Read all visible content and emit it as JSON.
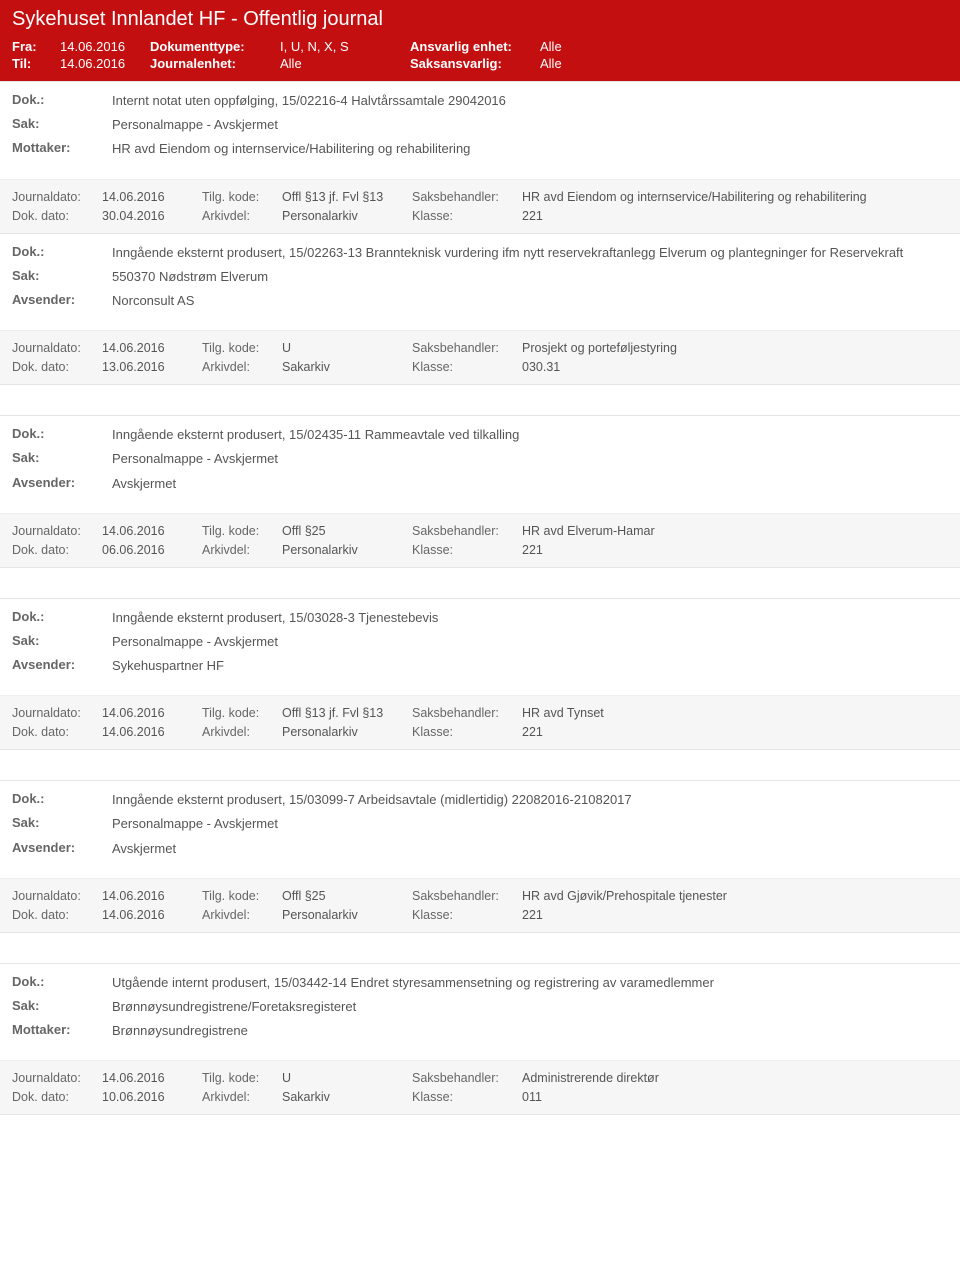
{
  "header": {
    "title": "Sykehuset Innlandet HF - Offentlig journal",
    "fra_label": "Fra:",
    "fra_value": "14.06.2016",
    "til_label": "Til:",
    "til_value": "14.06.2016",
    "doktype_label": "Dokumenttype:",
    "doktype_value": "I, U, N, X, S",
    "jenhet_label": "Journalenhet:",
    "jenhet_value": "Alle",
    "ansvarlig_label": "Ansvarlig enhet:",
    "ansvarlig_value": "Alle",
    "saks_label": "Saksansvarlig:",
    "saks_value": "Alle"
  },
  "labels": {
    "dok": "Dok.:",
    "sak": "Sak:",
    "mottaker": "Mottaker:",
    "avsender": "Avsender:",
    "journaldato": "Journaldato:",
    "dokdato": "Dok. dato:",
    "tilgkode": "Tilg. kode:",
    "arkivdel": "Arkivdel:",
    "saksbehandler": "Saksbehandler:",
    "klasse": "Klasse:"
  },
  "entries": [
    {
      "dok": "Internt notat uten oppfølging, 15/02216-4 Halvtårssamtale 29042016",
      "sak": "Personalmappe - Avskjermet",
      "party_label": "Mottaker:",
      "party": "HR avd Eiendom og internservice/Habilitering og rehabilitering",
      "jd": "14.06.2016",
      "tk": "Offl §13 jf. Fvl §13",
      "sb": "HR avd Eiendom og internservice/Habilitering og rehabilitering",
      "dd": "30.04.2016",
      "ad": "Personalarkiv",
      "kl": "221"
    },
    {
      "dok": "Inngående eksternt produsert, 15/02263-13 Brannteknisk vurdering ifm nytt reservekraftanlegg Elverum og plantegninger for Reservekraft",
      "sak": "550370 Nødstrøm Elverum",
      "party_label": "Avsender:",
      "party": "Norconsult AS",
      "jd": "14.06.2016",
      "tk": "U",
      "sb": "Prosjekt og porteføljestyring",
      "dd": "13.06.2016",
      "ad": "Sakarkiv",
      "kl": "030.31"
    },
    {
      "dok": "Inngående eksternt produsert, 15/02435-11 Rammeavtale ved tilkalling",
      "sak": "Personalmappe - Avskjermet",
      "party_label": "Avsender:",
      "party": "Avskjermet",
      "jd": "14.06.2016",
      "tk": "Offl §25",
      "sb": "HR avd Elverum-Hamar",
      "dd": "06.06.2016",
      "ad": "Personalarkiv",
      "kl": "221"
    },
    {
      "dok": "Inngående eksternt produsert, 15/03028-3 Tjenestebevis",
      "sak": "Personalmappe - Avskjermet",
      "party_label": "Avsender:",
      "party": "Sykehuspartner HF",
      "jd": "14.06.2016",
      "tk": "Offl §13 jf. Fvl §13",
      "sb": "HR avd Tynset",
      "dd": "14.06.2016",
      "ad": "Personalarkiv",
      "kl": "221"
    },
    {
      "dok": "Inngående eksternt produsert, 15/03099-7 Arbeidsavtale (midlertidig) 22082016-21082017",
      "sak": "Personalmappe - Avskjermet",
      "party_label": "Avsender:",
      "party": "Avskjermet",
      "jd": "14.06.2016",
      "tk": "Offl §25",
      "sb": "HR avd Gjøvik/Prehospitale tjenester",
      "dd": "14.06.2016",
      "ad": "Personalarkiv",
      "kl": "221"
    },
    {
      "dok": "Utgående internt produsert, 15/03442-14 Endret styresammensetning og registrering av varamedlemmer",
      "sak": "Brønnøysundregistrene/Foretaksregisteret",
      "party_label": "Mottaker:",
      "party": "Brønnøysundregistrene",
      "jd": "14.06.2016",
      "tk": "U",
      "sb": "Administrerende direktør",
      "dd": "10.06.2016",
      "ad": "Sakarkiv",
      "kl": "011"
    }
  ]
}
